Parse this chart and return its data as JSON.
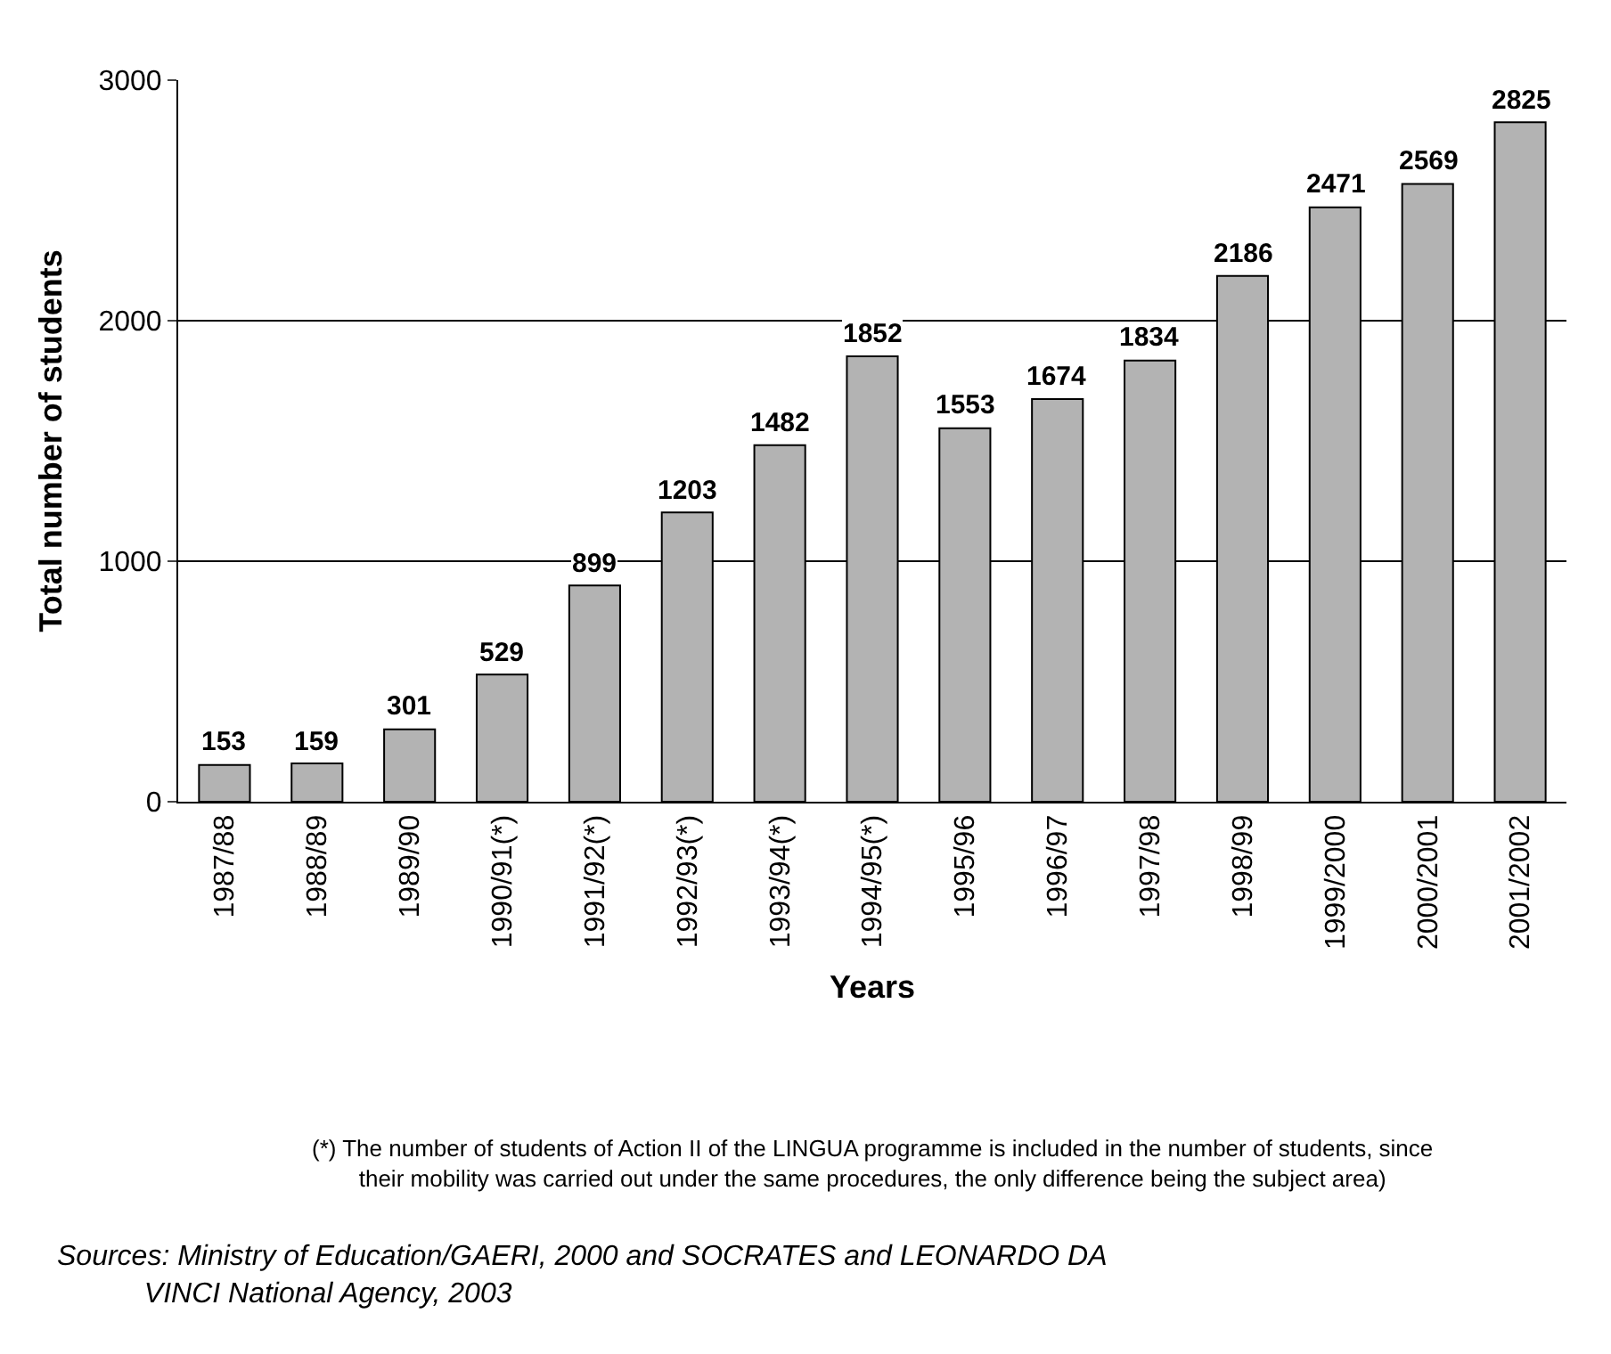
{
  "chart_data": {
    "type": "bar",
    "categories": [
      "1987/88",
      "1988/89",
      "1989/90",
      "1990/91(*)",
      "1991/92(*)",
      "1992/93(*)",
      "1993/94(*)",
      "1994/95(*)",
      "1995/96",
      "1996/97",
      "1997/98",
      "1998/99",
      "1999/2000",
      "2000/2001",
      "2001/2002"
    ],
    "values": [
      153,
      159,
      301,
      529,
      899,
      1203,
      1482,
      1852,
      1553,
      1674,
      1834,
      2186,
      2471,
      2569,
      2825
    ],
    "color": "#b3b3b3",
    "xlabel": "Years",
    "ylabel": "Total number of students",
    "ylim": [
      0,
      3000
    ],
    "yticks": [
      0,
      1000,
      2000,
      3000
    ],
    "grid": "y",
    "data_labels": true,
    "annotations": [
      "(*) The number of students of Action II of the LINGUA programme is included in the number of students, since their mobility was carried out under the same procedures, the only difference being the subject area)",
      "Sources: Ministry of Education/GAERI, 2000 and SOCRATES and LEONARDO DA VINCI National Agency, 2003"
    ]
  }
}
